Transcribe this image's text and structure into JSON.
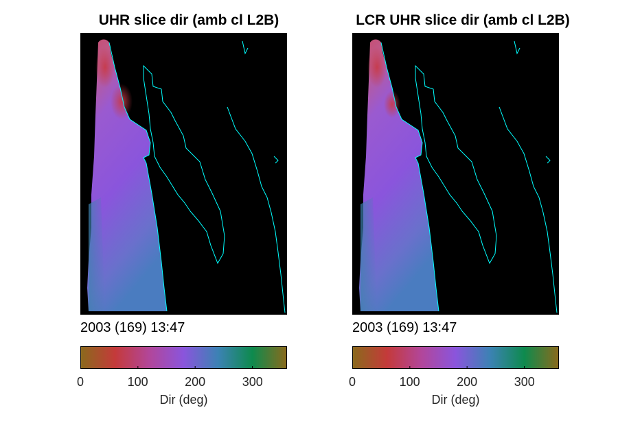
{
  "chart_data": [
    {
      "type": "heatmap",
      "title": "UHR slice dir (amb cl L2B)",
      "annotation": "2003 (169) 13:47",
      "colorbar": {
        "label": "Dir (deg)",
        "range": [
          0,
          360
        ],
        "ticks": [
          0,
          100,
          200,
          300
        ],
        "colors": [
          "#8a6a1c",
          "#c43a3a",
          "#b2469a",
          "#8a55dc",
          "#3c82b4",
          "#0e8a4e",
          "#8a6a1c"
        ]
      },
      "background_color": "#000000",
      "coastline_color": "#00ffff",
      "dominant_direction_deg": [
        80,
        160
      ]
    },
    {
      "type": "heatmap",
      "title": "LCR UHR slice dir (amb cl L2B)",
      "annotation": "2003 (169) 13:47",
      "colorbar": {
        "label": "Dir (deg)",
        "range": [
          0,
          360
        ],
        "ticks": [
          0,
          100,
          200,
          300
        ],
        "colors": [
          "#8a6a1c",
          "#c43a3a",
          "#b2469a",
          "#8a55dc",
          "#3c82b4",
          "#0e8a4e",
          "#8a6a1c"
        ]
      },
      "background_color": "#000000",
      "coastline_color": "#00ffff",
      "dominant_direction_deg": [
        80,
        160
      ]
    }
  ]
}
